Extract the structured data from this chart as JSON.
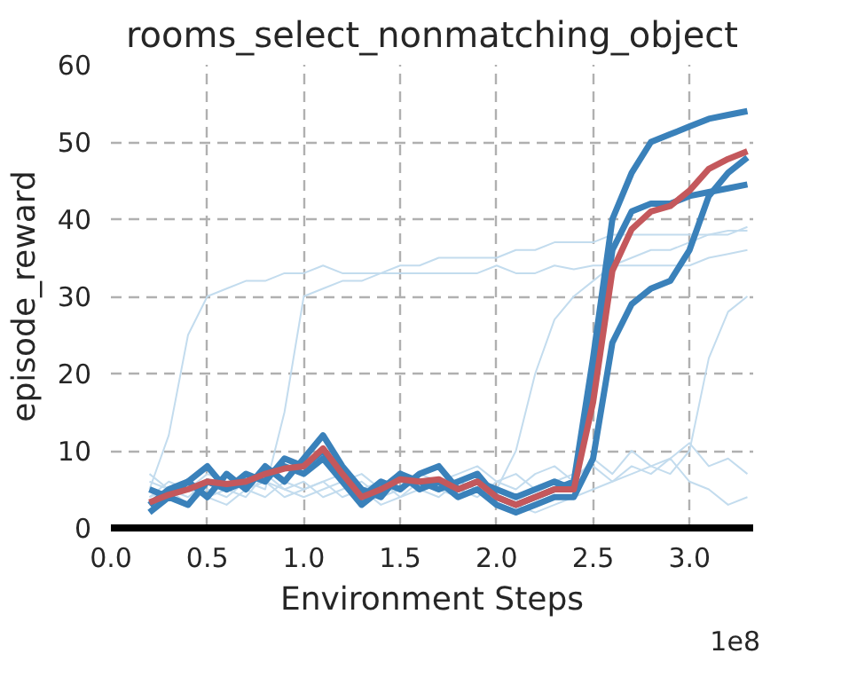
{
  "chart_data": {
    "type": "line",
    "title": "rooms_select_nonmatching_object",
    "xlabel": "Environment Steps",
    "ylabel": "episode_reward",
    "x": [
      0.2,
      0.3,
      0.4,
      0.5,
      0.6,
      0.7,
      0.8,
      0.9,
      1.0,
      1.1,
      1.2,
      1.3,
      1.4,
      1.5,
      1.6,
      1.7,
      1.8,
      1.9,
      2.0,
      2.1,
      2.2,
      2.3,
      2.4,
      2.5,
      2.6,
      2.7,
      2.8,
      2.9,
      3.0,
      3.1,
      3.2,
      3.3
    ],
    "series": [
      {
        "color": "#c3dcee",
        "values": [
          5,
          12,
          25,
          30,
          31,
          32,
          32,
          33,
          33,
          34,
          33,
          33,
          33,
          34,
          34,
          35,
          35,
          35,
          35,
          36,
          36,
          37,
          37,
          37,
          38,
          38,
          38,
          38,
          38,
          38,
          38.5,
          38.5
        ]
      },
      {
        "color": "#c3dcee",
        "values": [
          4,
          5,
          3,
          5,
          4,
          6,
          5,
          15,
          30,
          31,
          32,
          32,
          33,
          33,
          33,
          33,
          33,
          33,
          34,
          33,
          33,
          34,
          33.5,
          34,
          34,
          34,
          34,
          34,
          34,
          35,
          35.5,
          36
        ]
      },
      {
        "color": "#c3dcee",
        "values": [
          3,
          4,
          5,
          4,
          3,
          5,
          6,
          4,
          5,
          6,
          4,
          5,
          3,
          4,
          6,
          5,
          4,
          5,
          5,
          10,
          20,
          27,
          30,
          32,
          34,
          35,
          36,
          36,
          37,
          38,
          38,
          39
        ]
      },
      {
        "color": "#c3dcee",
        "values": [
          6,
          5,
          4,
          6,
          5,
          4,
          7,
          5,
          6,
          4,
          5,
          6,
          4,
          5,
          7,
          6,
          5,
          4,
          6,
          7,
          5,
          6,
          7,
          8,
          6,
          7,
          8,
          7,
          10,
          22,
          28,
          30
        ]
      },
      {
        "color": "#c3dcee",
        "values": [
          4,
          6,
          5,
          7,
          6,
          5,
          4,
          6,
          5,
          6,
          7,
          5,
          6,
          4,
          5,
          6,
          7,
          8,
          6,
          5,
          7,
          8,
          6,
          9,
          7,
          10,
          8,
          9,
          11,
          8,
          9,
          7
        ]
      },
      {
        "color": "#c3dcee",
        "values": [
          7,
          5,
          6,
          4,
          5,
          7,
          6,
          5,
          4,
          5,
          6,
          7,
          5,
          6,
          5,
          4,
          6,
          5,
          4,
          3,
          2,
          3,
          4,
          5,
          6,
          8,
          7,
          9,
          6,
          5,
          3,
          4
        ]
      },
      {
        "color": "#3a81ba",
        "values": [
          3,
          5,
          6,
          4,
          7,
          5,
          8,
          6,
          9,
          12,
          8,
          5,
          4,
          7,
          6,
          5,
          6,
          7,
          4,
          3,
          4,
          5,
          6,
          22,
          40,
          46,
          50,
          51,
          52,
          53,
          53.5,
          54
        ]
      },
      {
        "color": "#3a81ba",
        "values": [
          5,
          4,
          6,
          8,
          5,
          7,
          6,
          9,
          8,
          10,
          7,
          4,
          6,
          5,
          7,
          8,
          5,
          6,
          5,
          4,
          5,
          6,
          5,
          18,
          36,
          41,
          42,
          42,
          43,
          43.5,
          44,
          44.5
        ]
      },
      {
        "color": "#3a81ba",
        "values": [
          2,
          4,
          3,
          6,
          5,
          6,
          7,
          8,
          7,
          9,
          6,
          3,
          5,
          7,
          5,
          6,
          4,
          5,
          3,
          2,
          3,
          4,
          4,
          9,
          24,
          29,
          31,
          32,
          36,
          43,
          46,
          48
        ]
      },
      {
        "color": "#c4585c",
        "values": [
          3.3,
          4.3,
          5,
          6,
          5.7,
          6,
          7,
          7.7,
          8,
          10.3,
          7,
          4,
          5,
          6.3,
          6,
          6.3,
          5,
          6,
          4,
          3,
          4,
          5,
          5,
          16.3,
          33.3,
          38.7,
          41,
          41.7,
          43.7,
          46.5,
          47.8,
          48.8
        ]
      }
    ],
    "xlim": [
      0,
      3.33
    ],
    "ylim": [
      0,
      60
    ],
    "xticks": [
      {
        "value": 0,
        "label": "0.0"
      },
      0.5,
      {
        "value": 1,
        "label": "1.0"
      },
      1.5,
      {
        "value": 2,
        "label": "2.0"
      },
      2.5,
      {
        "value": 3,
        "label": "3.0"
      }
    ],
    "yticks": [
      0,
      10,
      20,
      30,
      40,
      50,
      60
    ],
    "annotations": [
      "1e8"
    ],
    "grid": true,
    "line_style": "solid",
    "marker": "none"
  }
}
